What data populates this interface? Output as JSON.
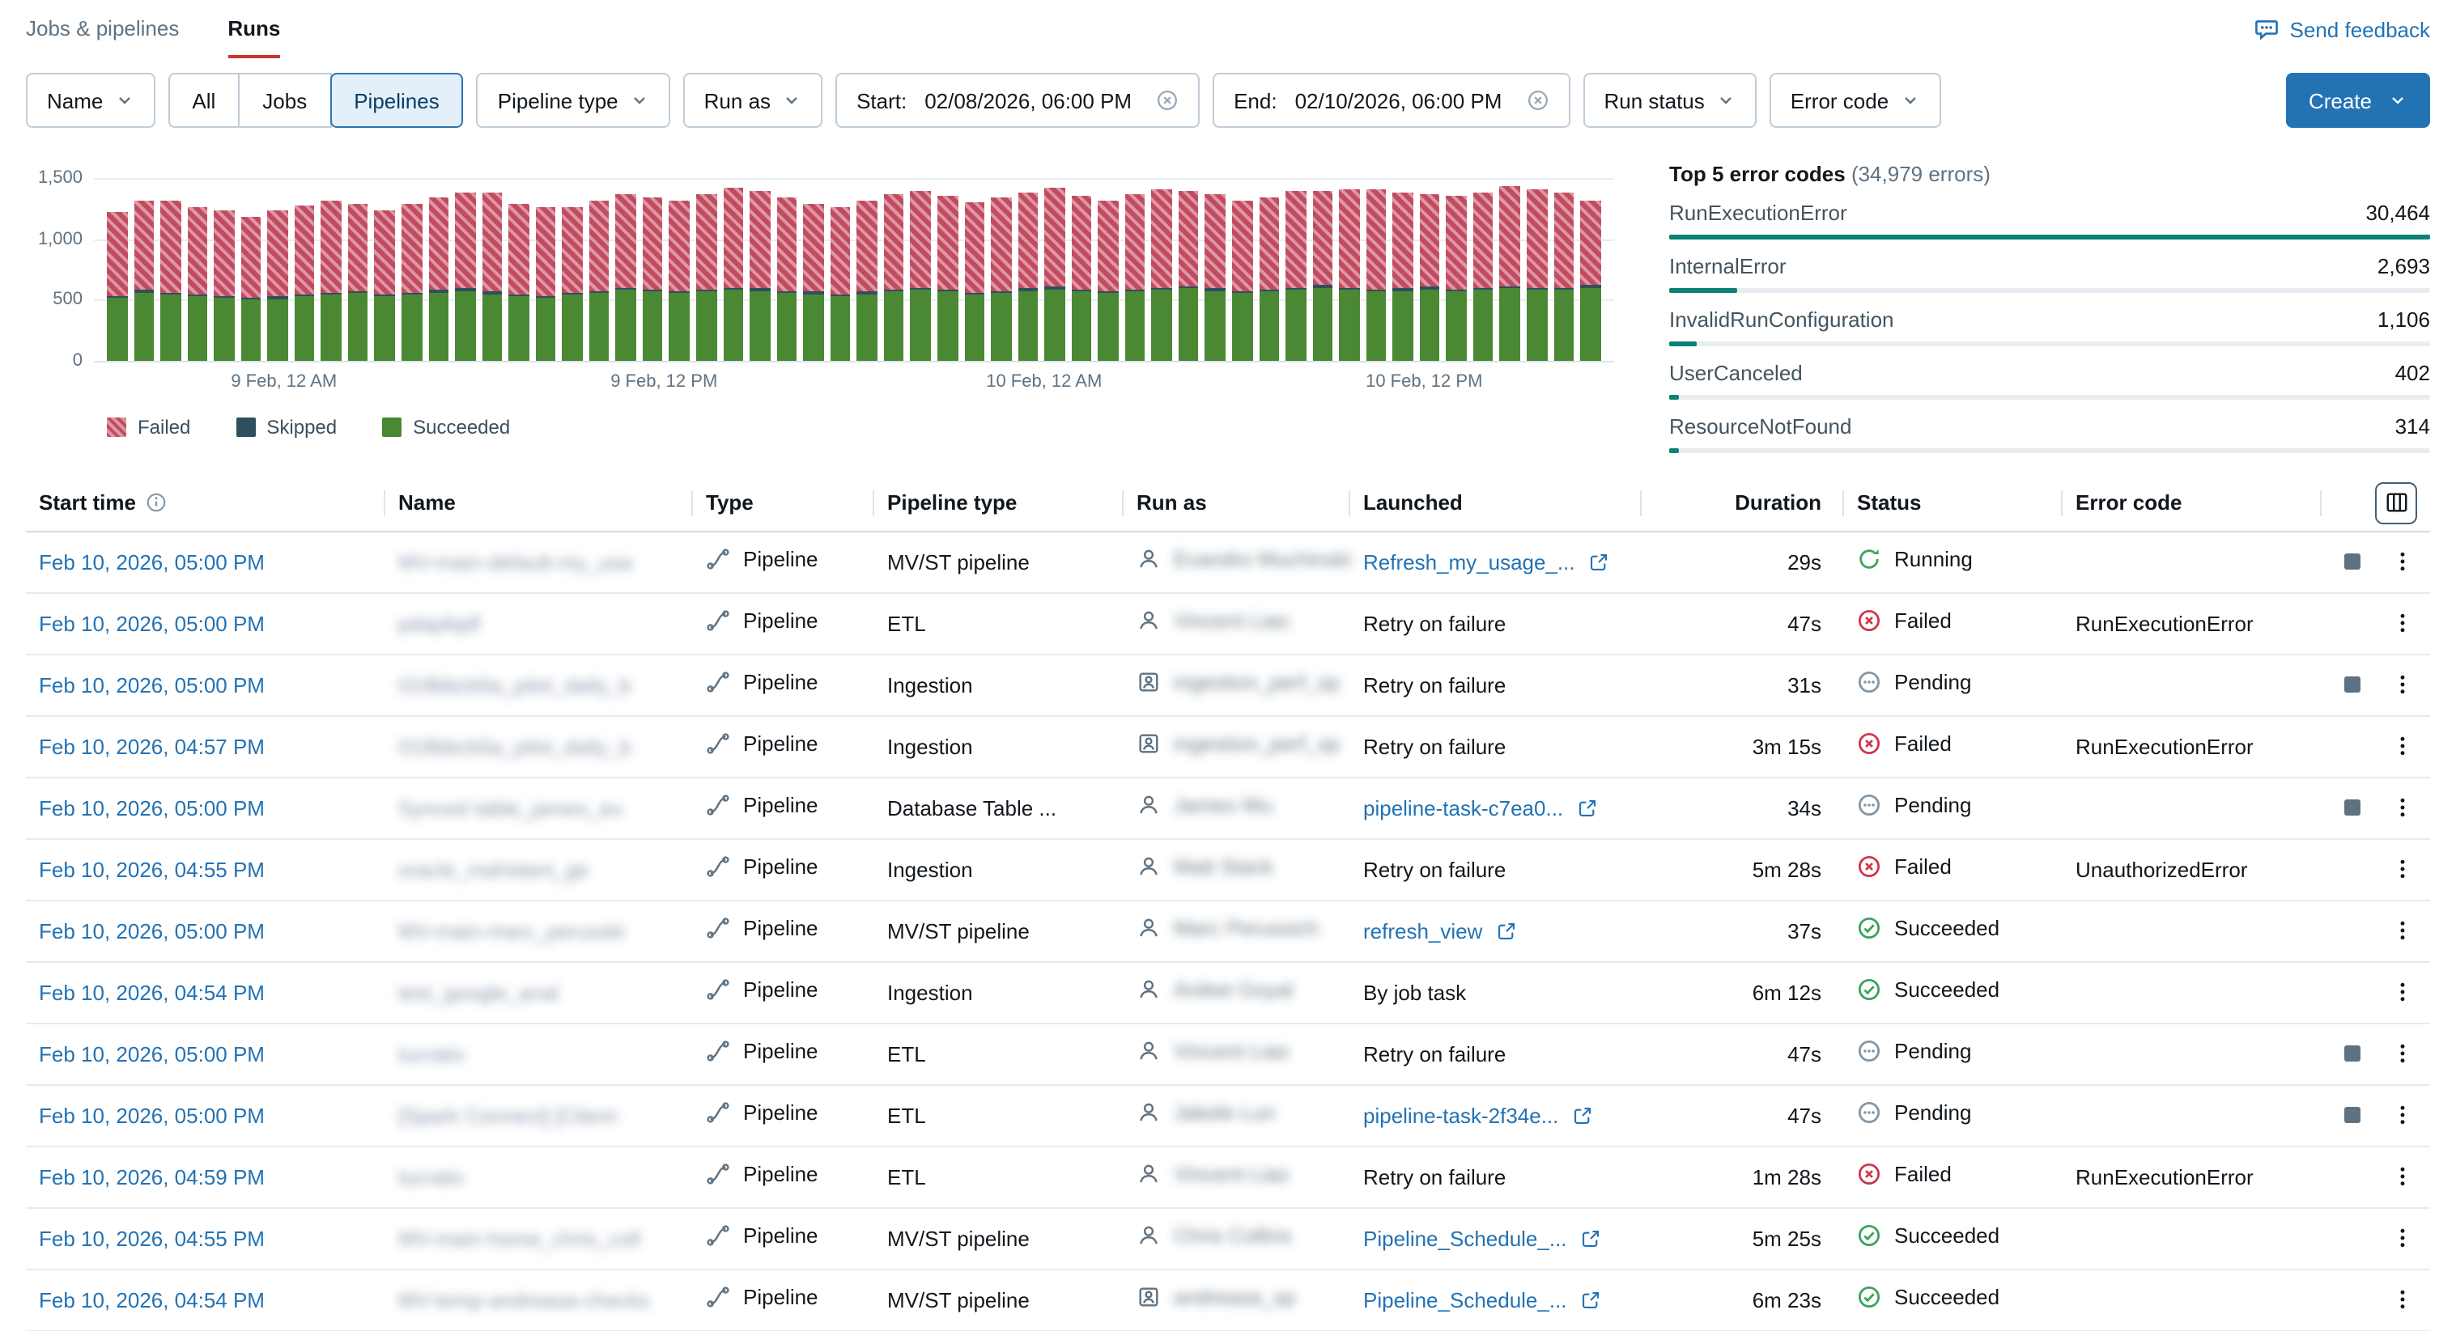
{
  "colors": {
    "link": "#2272B4",
    "primary_button": "#2272B4",
    "tab_underline": "#C9372C",
    "failed_status": "#D0364A",
    "succeeded_status": "#3BA45D",
    "pending_status": "#8196A7",
    "error_bar": "#0B8276",
    "chart_failed": "#C14B61",
    "chart_skipped": "#2F4F5E",
    "chart_succeeded": "#4A8834"
  },
  "icons": {
    "feedback": "speech-bubble-icon",
    "dropdown": "chevron-down-icon",
    "clear_date": "circle-x-clear-icon",
    "start_time_info": "info-icon",
    "run_type": "pipeline-icon",
    "run_as_person": "user-icon",
    "run_as_service": "service-principal-icon",
    "launched_external": "external-link-icon",
    "row_menu": "kebab-menu-icon",
    "cancel_run": "stop-square-icon",
    "column_config": "table-columns-icon"
  },
  "header": {
    "tabs": [
      {
        "label": "Jobs & pipelines",
        "active": false
      },
      {
        "label": "Runs",
        "active": true
      }
    ],
    "send_feedback": "Send feedback"
  },
  "filters": {
    "name": "Name",
    "segments": [
      "All",
      "Jobs",
      "Pipelines"
    ],
    "selected_segment": "Pipelines",
    "pipeline_type": "Pipeline type",
    "run_as": "Run as",
    "start_label": "Start:",
    "start_value": "02/08/2026, 06:00 PM",
    "end_label": "End:",
    "end_value": "02/10/2026, 06:00 PM",
    "run_status": "Run status",
    "error_code": "Error code",
    "create": "Create"
  },
  "chart_data": {
    "type": "bar",
    "stacked": true,
    "title": "",
    "xlabel": "",
    "ylabel": "",
    "ylim": [
      0,
      1500
    ],
    "y_ticks": [
      "0",
      "500",
      "1,000",
      "1,500"
    ],
    "x_tick_labels": [
      "9 Feb, 12 AM",
      "9 Feb, 12 PM",
      "10 Feb, 12 AM",
      "10 Feb, 12 PM"
    ],
    "x_tick_positions": [
      0.125,
      0.375,
      0.625,
      0.875
    ],
    "grid": true,
    "legend_position": "bottom",
    "legend": [
      {
        "name": "Failed",
        "color": "#C14B61",
        "hatched": true
      },
      {
        "name": "Skipped",
        "color": "#2F4F5E",
        "hatched": false
      },
      {
        "name": "Succeeded",
        "color": "#4A8834",
        "hatched": false
      }
    ],
    "series": [
      {
        "name": "Succeeded",
        "values": [
          520,
          560,
          545,
          530,
          515,
          500,
          510,
          525,
          540,
          555,
          530,
          545,
          560,
          575,
          550,
          535,
          520,
          540,
          560,
          580,
          570,
          555,
          565,
          585,
          575,
          560,
          545,
          530,
          550,
          570,
          585,
          565,
          550,
          560,
          575,
          590,
          570,
          555,
          565,
          580,
          595,
          575,
          560,
          570,
          585,
          600,
          580,
          565,
          575,
          590,
          570,
          585,
          595,
          580,
          590,
          600
        ]
      },
      {
        "name": "Skipped",
        "values": [
          15,
          20,
          12,
          18,
          14,
          16,
          20,
          15,
          12,
          18,
          16,
          14,
          20,
          18,
          15,
          12,
          16,
          20,
          14,
          18,
          15,
          20,
          16,
          12,
          18,
          14,
          20,
          16,
          15,
          18,
          12,
          20,
          14,
          16,
          18,
          15,
          20,
          12,
          16,
          18,
          14,
          20,
          15,
          16,
          12,
          18,
          20,
          14,
          16,
          15,
          18,
          12,
          20,
          16,
          14,
          18
        ]
      },
      {
        "name": "Failed",
        "values": [
          690,
          740,
          760,
          720,
          700,
          670,
          705,
          735,
          765,
          710,
          690,
          725,
          760,
          790,
          815,
          745,
          720,
          705,
          745,
          775,
          760,
          735,
          790,
          820,
          800,
          770,
          725,
          710,
          750,
          780,
          800,
          770,
          740,
          760,
          790,
          810,
          770,
          750,
          780,
          805,
          790,
          770,
          745,
          760,
          800,
          780,
          810,
          830,
          790,
          760,
          770,
          790,
          820,
          805,
          780,
          700
        ]
      }
    ]
  },
  "error_panel": {
    "title": "Top 5 error codes",
    "subtitle": "(34,979 errors)",
    "max_count": 30464,
    "items": [
      {
        "label": "RunExecutionError",
        "count": 30464,
        "display": "30,464"
      },
      {
        "label": "InternalError",
        "count": 2693,
        "display": "2,693"
      },
      {
        "label": "InvalidRunConfiguration",
        "count": 1106,
        "display": "1,106"
      },
      {
        "label": "UserCanceled",
        "count": 402,
        "display": "402"
      },
      {
        "label": "ResourceNotFound",
        "count": 314,
        "display": "314"
      }
    ]
  },
  "table": {
    "columns": [
      "Start time",
      "Name",
      "Type",
      "Pipeline type",
      "Run as",
      "Launched",
      "Duration",
      "Status",
      "Error code"
    ],
    "rows": [
      {
        "start_time": "Feb 10, 2026, 05:00 PM",
        "name": "MV-main-default-my_usa",
        "redacted": true,
        "type": "Pipeline",
        "pipeline_type": "MV/ST pipeline",
        "run_as": "Evandro Muchinski",
        "run_as_icon": "user",
        "launched": {
          "text": "Refresh_my_usage_...",
          "link": true
        },
        "duration": "29s",
        "status": "Running",
        "status_kind": "running",
        "error_code": "",
        "cancellable": true
      },
      {
        "start_time": "Feb 10, 2026, 05:00 PM",
        "name": "pdapfqdf",
        "redacted": true,
        "type": "Pipeline",
        "pipeline_type": "ETL",
        "run_as": "Vincent Liao",
        "run_as_icon": "user",
        "launched": {
          "text": "Retry on failure",
          "link": false
        },
        "duration": "47s",
        "status": "Failed",
        "status_kind": "failed",
        "error_code": "RunExecutionError",
        "cancellable": false
      },
      {
        "start_time": "Feb 10, 2026, 05:00 PM",
        "name": "019bbcb5a_pilot_daily_b",
        "redacted": true,
        "type": "Pipeline",
        "pipeline_type": "Ingestion",
        "run_as": "ingestion_perf_sp",
        "run_as_icon": "service",
        "launched": {
          "text": "Retry on failure",
          "link": false
        },
        "duration": "31s",
        "status": "Pending",
        "status_kind": "pending",
        "error_code": "",
        "cancellable": true
      },
      {
        "start_time": "Feb 10, 2026, 04:57 PM",
        "name": "019bbcb5a_pilot_daily_b",
        "redacted": true,
        "type": "Pipeline",
        "pipeline_type": "Ingestion",
        "run_as": "ingestion_perf_sp",
        "run_as_icon": "service",
        "launched": {
          "text": "Retry on failure",
          "link": false
        },
        "duration": "3m 15s",
        "status": "Failed",
        "status_kind": "failed",
        "error_code": "RunExecutionError",
        "cancellable": false
      },
      {
        "start_time": "Feb 10, 2026, 05:00 PM",
        "name": "Synced table_james_eu",
        "redacted": true,
        "type": "Pipeline",
        "pipeline_type": "Database Table ...",
        "run_as": "James Wu",
        "run_as_icon": "user",
        "launched": {
          "text": "pipeline-task-c7ea0...",
          "link": true
        },
        "duration": "34s",
        "status": "Pending",
        "status_kind": "pending",
        "error_code": "",
        "cancellable": true
      },
      {
        "start_time": "Feb 10, 2026, 04:55 PM",
        "name": "oracle_mahidant_ge",
        "redacted": true,
        "type": "Pipeline",
        "pipeline_type": "Ingestion",
        "run_as": "Matt Stack",
        "run_as_icon": "user",
        "launched": {
          "text": "Retry on failure",
          "link": false
        },
        "duration": "5m 28s",
        "status": "Failed",
        "status_kind": "failed",
        "error_code": "UnauthorizedError",
        "cancellable": false
      },
      {
        "start_time": "Feb 10, 2026, 05:00 PM",
        "name": "MV-main-marc_perusski",
        "redacted": true,
        "type": "Pipeline",
        "pipeline_type": "MV/ST pipeline",
        "run_as": "Marc Perussich",
        "run_as_icon": "user",
        "launched": {
          "text": "refresh_view",
          "link": true
        },
        "duration": "37s",
        "status": "Succeeded",
        "status_kind": "succeeded",
        "error_code": "",
        "cancellable": false
      },
      {
        "start_time": "Feb 10, 2026, 04:54 PM",
        "name": "test_google_anal",
        "redacted": true,
        "type": "Pipeline",
        "pipeline_type": "Ingestion",
        "run_as": "Aniket Goyal",
        "run_as_icon": "user",
        "launched": {
          "text": "By job task",
          "link": false
        },
        "duration": "6m 12s",
        "status": "Succeeded",
        "status_kind": "succeeded",
        "error_code": "",
        "cancellable": false
      },
      {
        "start_time": "Feb 10, 2026, 05:00 PM",
        "name": "lucrativ",
        "redacted": true,
        "type": "Pipeline",
        "pipeline_type": "ETL",
        "run_as": "Vincent Liao",
        "run_as_icon": "user",
        "launched": {
          "text": "Retry on failure",
          "link": false
        },
        "duration": "47s",
        "status": "Pending",
        "status_kind": "pending",
        "error_code": "",
        "cancellable": true
      },
      {
        "start_time": "Feb 10, 2026, 05:00 PM",
        "name": "[Spark Connect] [Client-",
        "redacted": true,
        "type": "Pipeline",
        "pipeline_type": "ETL",
        "run_as": "Jakele Lun",
        "run_as_icon": "user",
        "launched": {
          "text": "pipeline-task-2f34e...",
          "link": true
        },
        "duration": "47s",
        "status": "Pending",
        "status_kind": "pending",
        "error_code": "",
        "cancellable": true
      },
      {
        "start_time": "Feb 10, 2026, 04:59 PM",
        "name": "lucrativ",
        "redacted": true,
        "type": "Pipeline",
        "pipeline_type": "ETL",
        "run_as": "Vincent Liao",
        "run_as_icon": "user",
        "launched": {
          "text": "Retry on failure",
          "link": false
        },
        "duration": "1m 28s",
        "status": "Failed",
        "status_kind": "failed",
        "error_code": "RunExecutionError",
        "cancellable": false
      },
      {
        "start_time": "Feb 10, 2026, 04:55 PM",
        "name": "MV-main-home_chris_coll",
        "redacted": true,
        "type": "Pipeline",
        "pipeline_type": "MV/ST pipeline",
        "run_as": "Chris Collins",
        "run_as_icon": "user",
        "launched": {
          "text": "Pipeline_Schedule_...",
          "link": true
        },
        "duration": "5m 25s",
        "status": "Succeeded",
        "status_kind": "succeeded",
        "error_code": "",
        "cancellable": false
      },
      {
        "start_time": "Feb 10, 2026, 04:54 PM",
        "name": "MV-temp-andreasa-checks",
        "redacted": true,
        "type": "Pipeline",
        "pipeline_type": "MV/ST pipeline",
        "run_as": "andreasa_sp",
        "run_as_icon": "service",
        "launched": {
          "text": "Pipeline_Schedule_...",
          "link": true
        },
        "duration": "6m 23s",
        "status": "Succeeded",
        "status_kind": "succeeded",
        "error_code": "",
        "cancellable": false
      }
    ]
  }
}
